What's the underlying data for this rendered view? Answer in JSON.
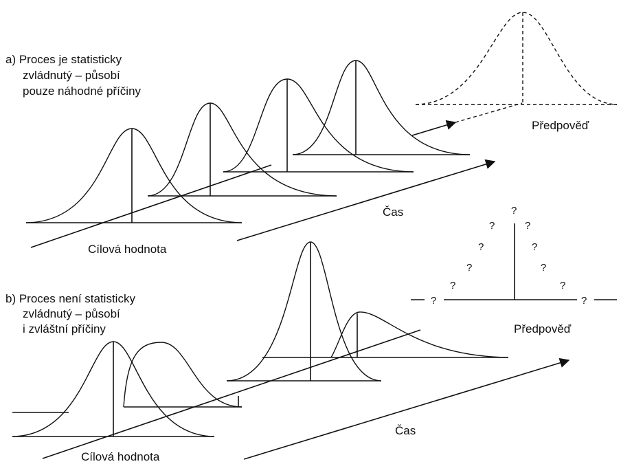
{
  "panel_a": {
    "caption_lines": [
      "a) Proces je statisticky",
      "zvládnutý – působí",
      "pouze náhodné příčiny"
    ],
    "time_label": "Čas",
    "target_label": "Cílová hodnota",
    "forecast_label": "Předpověď"
  },
  "panel_b": {
    "caption_lines": [
      "b) Proces není statisticky",
      "zvládnutý – působí",
      "i zvláštní příčiny"
    ],
    "time_label": "Čas",
    "target_label": "Cílová hodnota",
    "forecast_label": "Předpověď",
    "unknown_mark": "?"
  }
}
